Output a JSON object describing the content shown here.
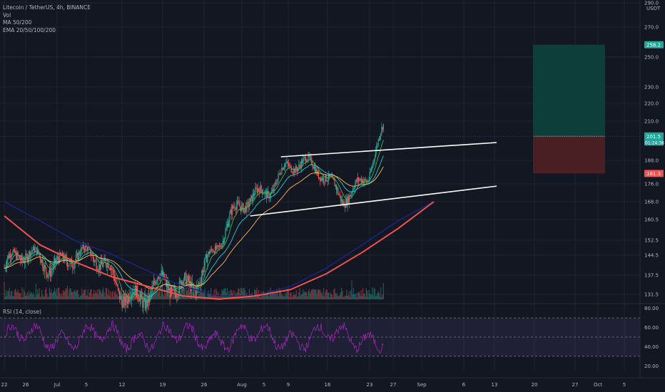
{
  "legend": {
    "symbol": "Litecoin / TetherUS, 4h, BINANCE",
    "lines": [
      "Vol",
      "MA 50/200",
      "EMA 20/50/100/200"
    ]
  },
  "rsi_label": "RSI (14, close)",
  "colors": {
    "background": "#131722",
    "grid": "#1f2330",
    "up": "#26a69a",
    "down": "#ef5350",
    "ema20": "#4caf50",
    "ema50": "#26c6da",
    "ema100": "#ffb74d",
    "ema200": "#ef5350",
    "ma200": "#1a237e",
    "rsi": "#9c27b0",
    "rsi_band": "#7e57c2",
    "target_zone": "#0e3e3a",
    "stop_zone": "#4a1f24"
  },
  "chart_data": {
    "type": "line",
    "x_labels": [
      "22",
      "26",
      "Jul",
      "5",
      "12",
      "19",
      "26",
      "Aug",
      "5",
      "9",
      "16",
      "23",
      "27",
      "Sep",
      "6",
      "13",
      "20",
      "27",
      "Oct",
      "5"
    ],
    "y_ticks": [
      131.5,
      137.5,
      144.5,
      152.5,
      160.5,
      168.0,
      176.0,
      188.0,
      210.0,
      220.0,
      230.0,
      250.0,
      270.0,
      290.0
    ],
    "price_axis_unit": "USDT",
    "price_tags": [
      {
        "label": "258.2",
        "value": 258.2,
        "color": "#26a69a"
      },
      {
        "label": "201.7",
        "value": 201.7,
        "color": "#787b86"
      },
      {
        "label": "201.5",
        "value": 201.5,
        "color": "#26a69a",
        "sub": "01:24:36"
      },
      {
        "label": "181.3",
        "value": 181.3,
        "color": "#ef5350"
      }
    ],
    "rsi_ticks": [
      20.0,
      40.0,
      60.0,
      80.0
    ],
    "rsi_levels": [
      30,
      50,
      70
    ],
    "series": [
      {
        "name": "MA 50/200",
        "color": "#1a237e",
        "x": [
          0,
          1,
          2,
          3,
          4,
          5,
          6,
          7,
          8,
          9,
          10,
          11,
          12
        ],
        "y": [
          168,
          160,
          152,
          145,
          139,
          134,
          131,
          131,
          134,
          140,
          150,
          160,
          168
        ]
      },
      {
        "name": "EMA 200",
        "color": "#ef5350",
        "x": [
          0,
          1,
          2,
          3,
          4,
          5,
          6,
          7,
          8,
          9,
          10,
          11,
          12
        ],
        "y": [
          162,
          150,
          142,
          137,
          134,
          131,
          130,
          131,
          133,
          138,
          146,
          157,
          168
        ]
      }
    ],
    "price_path_anchor": [
      {
        "date": "Jun 22",
        "price": 140
      },
      {
        "date": "Jul 5",
        "price": 146
      },
      {
        "date": "Jul 12",
        "price": 138
      },
      {
        "date": "Jul 19",
        "price": 132
      },
      {
        "date": "Jul 26",
        "price": 131
      },
      {
        "date": "Aug 1",
        "price": 146
      },
      {
        "date": "Aug 9",
        "price": 168
      },
      {
        "date": "Aug 16",
        "price": 186
      },
      {
        "date": "Aug 23",
        "price": 180
      },
      {
        "date": "Aug 27",
        "price": 174
      },
      {
        "date": "Sep 1",
        "price": 178
      },
      {
        "date": "Sep 4",
        "price": 201.5
      }
    ],
    "channel": {
      "upper": [
        {
          "date": "Aug 15",
          "price": 190
        },
        {
          "date": "Sep 8",
          "price": 198
        }
      ],
      "lower": [
        {
          "date": "Aug 9",
          "price": 162
        },
        {
          "date": "Sep 8",
          "price": 175
        }
      ]
    },
    "position": {
      "entry": 201.5,
      "target": 258.2,
      "stop": 181.3
    }
  }
}
